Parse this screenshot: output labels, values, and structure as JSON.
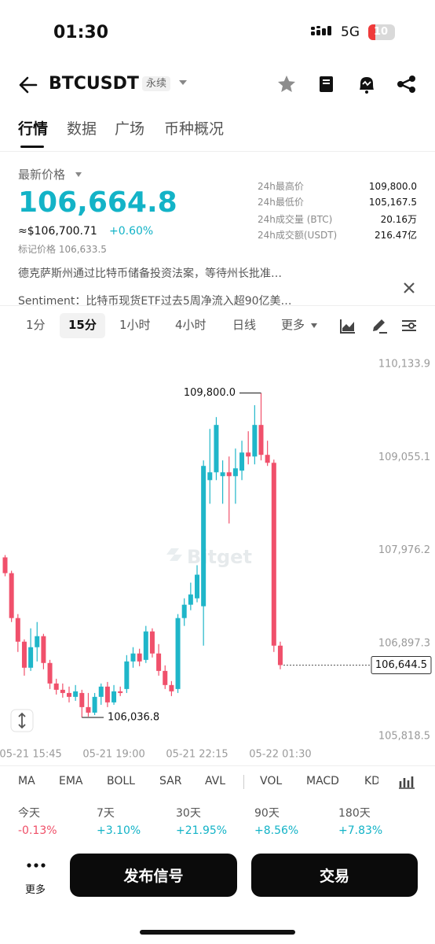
{
  "status_bar": {
    "time": "01:30",
    "network": "5G",
    "battery": "10"
  },
  "header": {
    "symbol": "BTCUSDT",
    "tag": "永续"
  },
  "tabs": [
    "行情",
    "数据",
    "广场",
    "币种概况"
  ],
  "price": {
    "label": "最新价格",
    "last": "106,664.8",
    "fiat": "≈$106,700.71",
    "change": "+0.60%",
    "mark": "标记价格 106,633.5"
  },
  "stats": [
    {
      "label": "24h最高价",
      "value": "109,800.0"
    },
    {
      "label": "24h最低价",
      "value": "105,167.5"
    },
    {
      "label": "24h成交量 (BTC)",
      "value": "20.16万"
    },
    {
      "label": "24h成交额(USDT)",
      "value": "216.47亿"
    }
  ],
  "news": [
    "德克萨斯州通过比特币储备投资法案，等待州长批准…",
    "Sentiment：比特币现货ETF过去5周净流入超90亿美…"
  ],
  "intervals": [
    "1分",
    "15分",
    "1小时",
    "4小时",
    "日线",
    "更多"
  ],
  "indicators": [
    "MA",
    "EMA",
    "BOLL",
    "SAR",
    "AVL",
    "VOL",
    "MACD",
    "KDJ"
  ],
  "performance": [
    {
      "period": "今天",
      "change": "-0.13%"
    },
    {
      "period": "7天",
      "change": "+3.10%"
    },
    {
      "period": "30天",
      "change": "+21.95%"
    },
    {
      "period": "90天",
      "change": "+8.56%"
    },
    {
      "period": "180天",
      "change": "+7.83%"
    }
  ],
  "actions": {
    "more": "更多",
    "signal": "发布信号",
    "trade": "交易"
  },
  "chart_data": {
    "type": "candlestick",
    "watermark": "Bitget",
    "up_color": "#1fb6c9",
    "down_color": "#f0506b",
    "categories": [
      null,
      null,
      null,
      null,
      "05-21 15:45",
      null,
      null,
      null,
      null,
      null,
      null,
      null,
      null,
      null,
      null,
      null,
      null,
      "05-21 19:00",
      null,
      null,
      null,
      null,
      null,
      null,
      null,
      null,
      null,
      null,
      null,
      null,
      "05-21 22:15",
      null,
      null,
      null,
      null,
      null,
      null,
      null,
      null,
      null,
      null,
      null,
      null,
      "05-22 01:30"
    ],
    "open": [
      107894,
      107711,
      107190,
      106916,
      106614,
      106852,
      106980,
      106669,
      106431,
      106358,
      106321,
      106276,
      106321,
      106157,
      106093,
      106276,
      106395,
      106212,
      106340,
      106367,
      106687,
      106779,
      106705,
      107035,
      106779,
      106577,
      106413,
      106367,
      107190,
      107345,
      107419,
      107327,
      108790,
      108881,
      108836,
      108881,
      108836,
      108900,
      109110,
      109064,
      109430,
      109083,
      108991,
      106870
    ],
    "high": [
      107921,
      107739,
      107236,
      106943,
      107071,
      107144,
      107007,
      106705,
      106486,
      106431,
      106395,
      106413,
      106358,
      106321,
      106321,
      106431,
      106449,
      106413,
      106395,
      106760,
      106852,
      106834,
      107099,
      107071,
      106888,
      106641,
      106459,
      107236,
      107419,
      107601,
      107803,
      109019,
      109384,
      109521,
      109019,
      109064,
      109156,
      109247,
      109357,
      109659,
      109800.0,
      109247,
      109028,
      106916
    ],
    "low": [
      107675,
      107144,
      106797,
      106522,
      106577,
      106687,
      106596,
      106367,
      106303,
      106267,
      106212,
      106230,
      106036.8,
      106047,
      106065,
      106184,
      106157,
      106184,
      106285,
      106321,
      106614,
      106632,
      106669,
      106733,
      106522,
      106367,
      106285,
      106321,
      107099,
      107281,
      107373,
      106870,
      108516,
      108790,
      108516,
      108287,
      108516,
      108790,
      108973,
      108973,
      109019,
      108955,
      106797,
      106596
    ],
    "close": [
      107711,
      107190,
      106916,
      106614,
      106852,
      106980,
      106669,
      106431,
      106358,
      106321,
      106276,
      106340,
      106157,
      106093,
      106276,
      106395,
      106212,
      106340,
      106321,
      106687,
      106779,
      106687,
      107035,
      106779,
      106577,
      106413,
      106340,
      107190,
      107345,
      107464,
      107693,
      108955,
      108881,
      109430,
      108881,
      108836,
      108927,
      109110,
      109064,
      109430,
      109083,
      108991,
      106870,
      106644.5
    ],
    "ylim": [
      105736.2,
      110298.5
    ],
    "yticks": [
      {
        "value": 110133.9,
        "label": "110,133.9"
      },
      {
        "value": 109055.1,
        "label": "109,055.1"
      },
      {
        "value": 107976.2,
        "label": "107,976.2"
      },
      {
        "value": 106897.3,
        "label": "106,897.3"
      },
      {
        "value": 105818.5,
        "label": "105,818.5"
      }
    ],
    "high_label": {
      "value": 109800.0,
      "label": "109,800.0"
    },
    "low_label": {
      "value": 106036.8,
      "label": "106,036.8"
    },
    "last_price": {
      "value": 106644.5,
      "label": "106,644.5"
    }
  }
}
